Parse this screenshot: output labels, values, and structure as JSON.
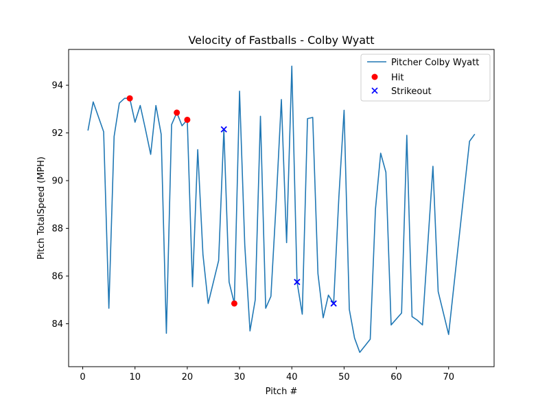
{
  "chart_data": {
    "type": "line",
    "title": "Velocity of Fastballs - Colby Wyatt",
    "xlabel": "Pitch #",
    "ylabel": "Pitch TotalSpeed (MPH)",
    "xlim": [
      -2.7,
      78.7
    ],
    "ylim": [
      82.2,
      95.5
    ],
    "xticks": [
      0,
      10,
      20,
      30,
      40,
      50,
      60,
      70
    ],
    "yticks": [
      84,
      86,
      88,
      90,
      92,
      94
    ],
    "grid": false,
    "legend_position": "top-right",
    "series": [
      {
        "name": "Pitcher Colby Wyatt",
        "color": "#1f77b4",
        "x": [
          1,
          2,
          4,
          5,
          6,
          7,
          8,
          9,
          10,
          11,
          12,
          13,
          14,
          15,
          16,
          17,
          18,
          19,
          20,
          21,
          22,
          23,
          24,
          26,
          27,
          28,
          29,
          30,
          31,
          32,
          33,
          34,
          35,
          36,
          37,
          38,
          39,
          40,
          41,
          42,
          43,
          44,
          45,
          46,
          47,
          48,
          49,
          50,
          51,
          52,
          53,
          55,
          56,
          57,
          58,
          59,
          61,
          62,
          63,
          64,
          65,
          67,
          68,
          70,
          74,
          75
        ],
        "y": [
          92.1,
          93.3,
          92.05,
          84.65,
          91.85,
          93.25,
          93.45,
          93.45,
          92.45,
          93.15,
          92.15,
          91.1,
          93.15,
          91.95,
          83.6,
          92.35,
          92.85,
          92.3,
          92.55,
          85.55,
          91.3,
          86.9,
          84.85,
          86.65,
          92.15,
          85.75,
          84.85,
          93.75,
          87.3,
          83.7,
          85.0,
          92.7,
          84.65,
          85.15,
          89.05,
          93.4,
          87.4,
          94.8,
          85.75,
          84.4,
          92.6,
          92.65,
          86.1,
          84.25,
          85.2,
          84.85,
          89.3,
          92.95,
          84.6,
          83.4,
          82.8,
          83.35,
          88.8,
          91.15,
          90.35,
          83.95,
          84.45,
          91.9,
          84.3,
          84.15,
          83.95,
          90.6,
          85.35,
          83.55,
          91.65,
          91.95
        ]
      },
      {
        "name": "Hit",
        "color": "#ff0000",
        "marker": "circle",
        "x": [
          9,
          18,
          20,
          29
        ],
        "y": [
          93.45,
          92.85,
          92.55,
          84.85
        ]
      },
      {
        "name": "Strikeout",
        "color": "#0000ff",
        "marker": "x",
        "x": [
          27,
          41,
          48
        ],
        "y": [
          92.15,
          85.75,
          84.85
        ]
      }
    ]
  }
}
